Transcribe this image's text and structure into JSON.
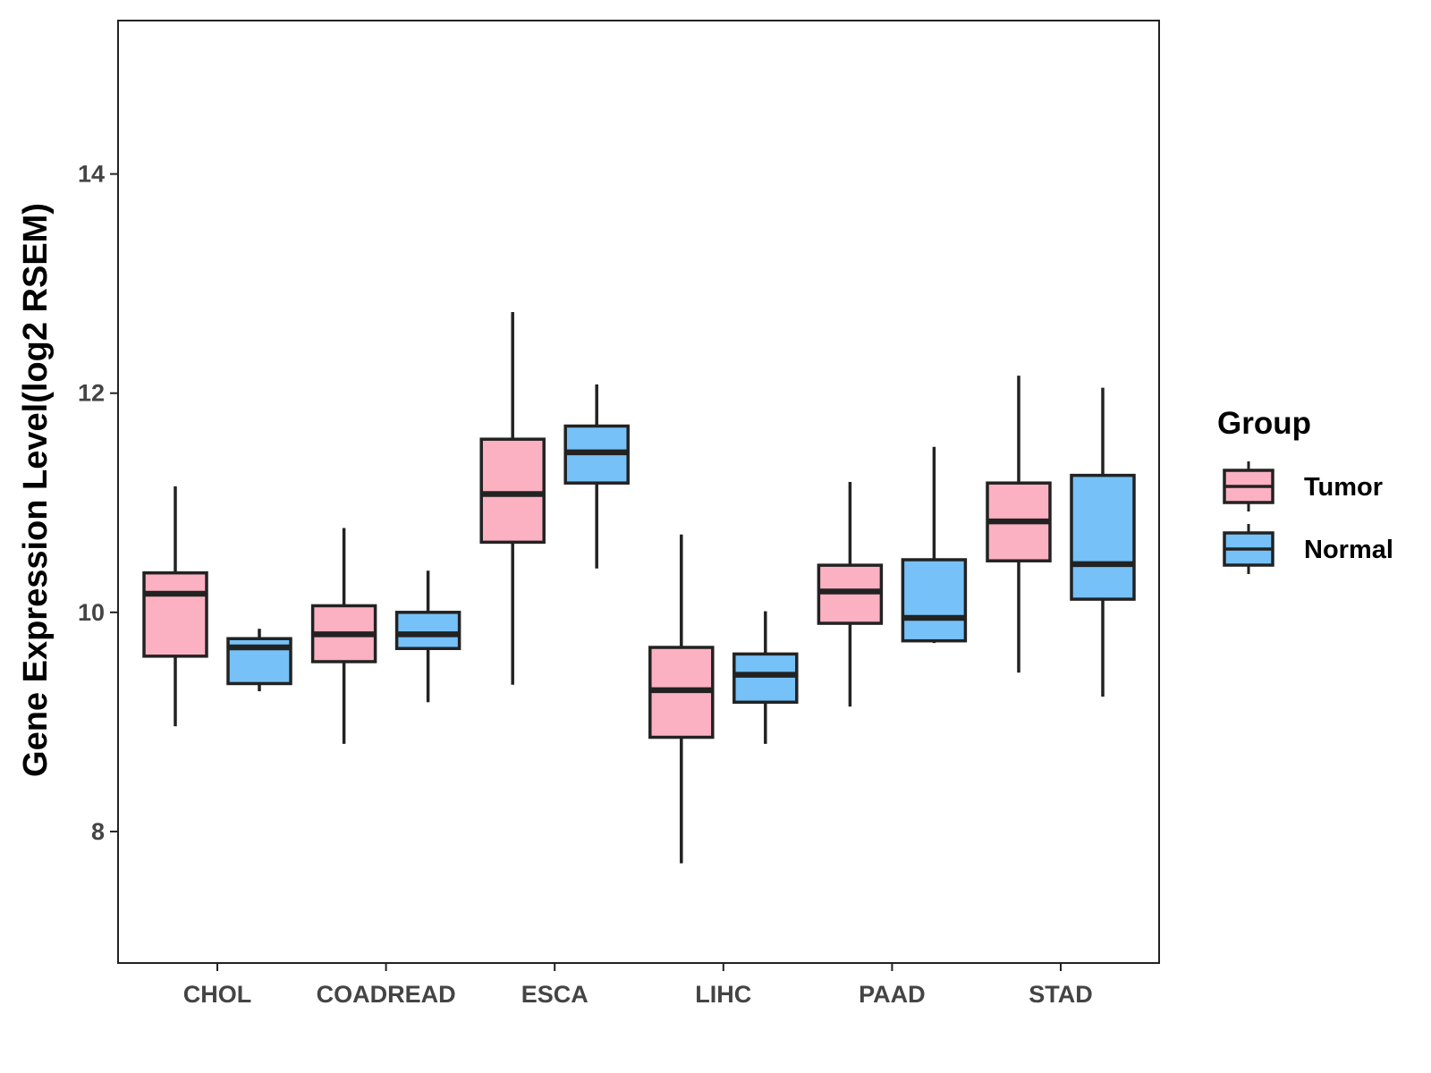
{
  "chart_data": {
    "type": "boxplot",
    "title": "",
    "xlabel": "",
    "ylabel": "Gene Expression Level(log2 RSEM)",
    "ylim": [
      6.8,
      15.4
    ],
    "yticks": [
      8,
      10,
      12,
      14
    ],
    "ytick_labels": [
      "8",
      "10",
      "12",
      "14"
    ],
    "categories": [
      "CHOL",
      "COADREAD",
      "ESCA",
      "LIHC",
      "PAAD",
      "STAD"
    ],
    "legend": {
      "title": "Group",
      "position": "right"
    },
    "series": [
      {
        "name": "Tumor",
        "color": "#FBB1C2",
        "boxes": [
          {
            "category": "CHOL",
            "min": 8.96,
            "q1": 9.6,
            "median": 10.17,
            "q3": 10.36,
            "max": 11.15
          },
          {
            "category": "COADREAD",
            "min": 8.8,
            "q1": 9.55,
            "median": 9.8,
            "q3": 10.06,
            "max": 10.77
          },
          {
            "category": "ESCA",
            "min": 9.34,
            "q1": 10.64,
            "median": 11.08,
            "q3": 11.58,
            "max": 12.74
          },
          {
            "category": "LIHC",
            "min": 7.71,
            "q1": 8.86,
            "median": 9.29,
            "q3": 9.68,
            "max": 10.71
          },
          {
            "category": "PAAD",
            "min": 9.14,
            "q1": 9.9,
            "median": 10.19,
            "q3": 10.43,
            "max": 11.19
          },
          {
            "category": "STAD",
            "min": 9.45,
            "q1": 10.47,
            "median": 10.83,
            "q3": 11.18,
            "max": 12.16
          }
        ]
      },
      {
        "name": "Normal",
        "color": "#76C1F7",
        "boxes": [
          {
            "category": "CHOL",
            "min": 9.28,
            "q1": 9.35,
            "median": 9.68,
            "q3": 9.76,
            "max": 9.85
          },
          {
            "category": "COADREAD",
            "min": 9.18,
            "q1": 9.67,
            "median": 9.8,
            "q3": 10.0,
            "max": 10.38
          },
          {
            "category": "ESCA",
            "min": 10.4,
            "q1": 11.18,
            "median": 11.46,
            "q3": 11.7,
            "max": 12.08
          },
          {
            "category": "LIHC",
            "min": 8.8,
            "q1": 9.18,
            "median": 9.43,
            "q3": 9.62,
            "max": 10.01
          },
          {
            "category": "PAAD",
            "min": 9.72,
            "q1": 9.74,
            "median": 9.95,
            "q3": 10.48,
            "max": 11.51
          },
          {
            "category": "STAD",
            "min": 9.23,
            "q1": 10.12,
            "median": 10.44,
            "q3": 11.25,
            "max": 12.05
          }
        ]
      }
    ]
  }
}
